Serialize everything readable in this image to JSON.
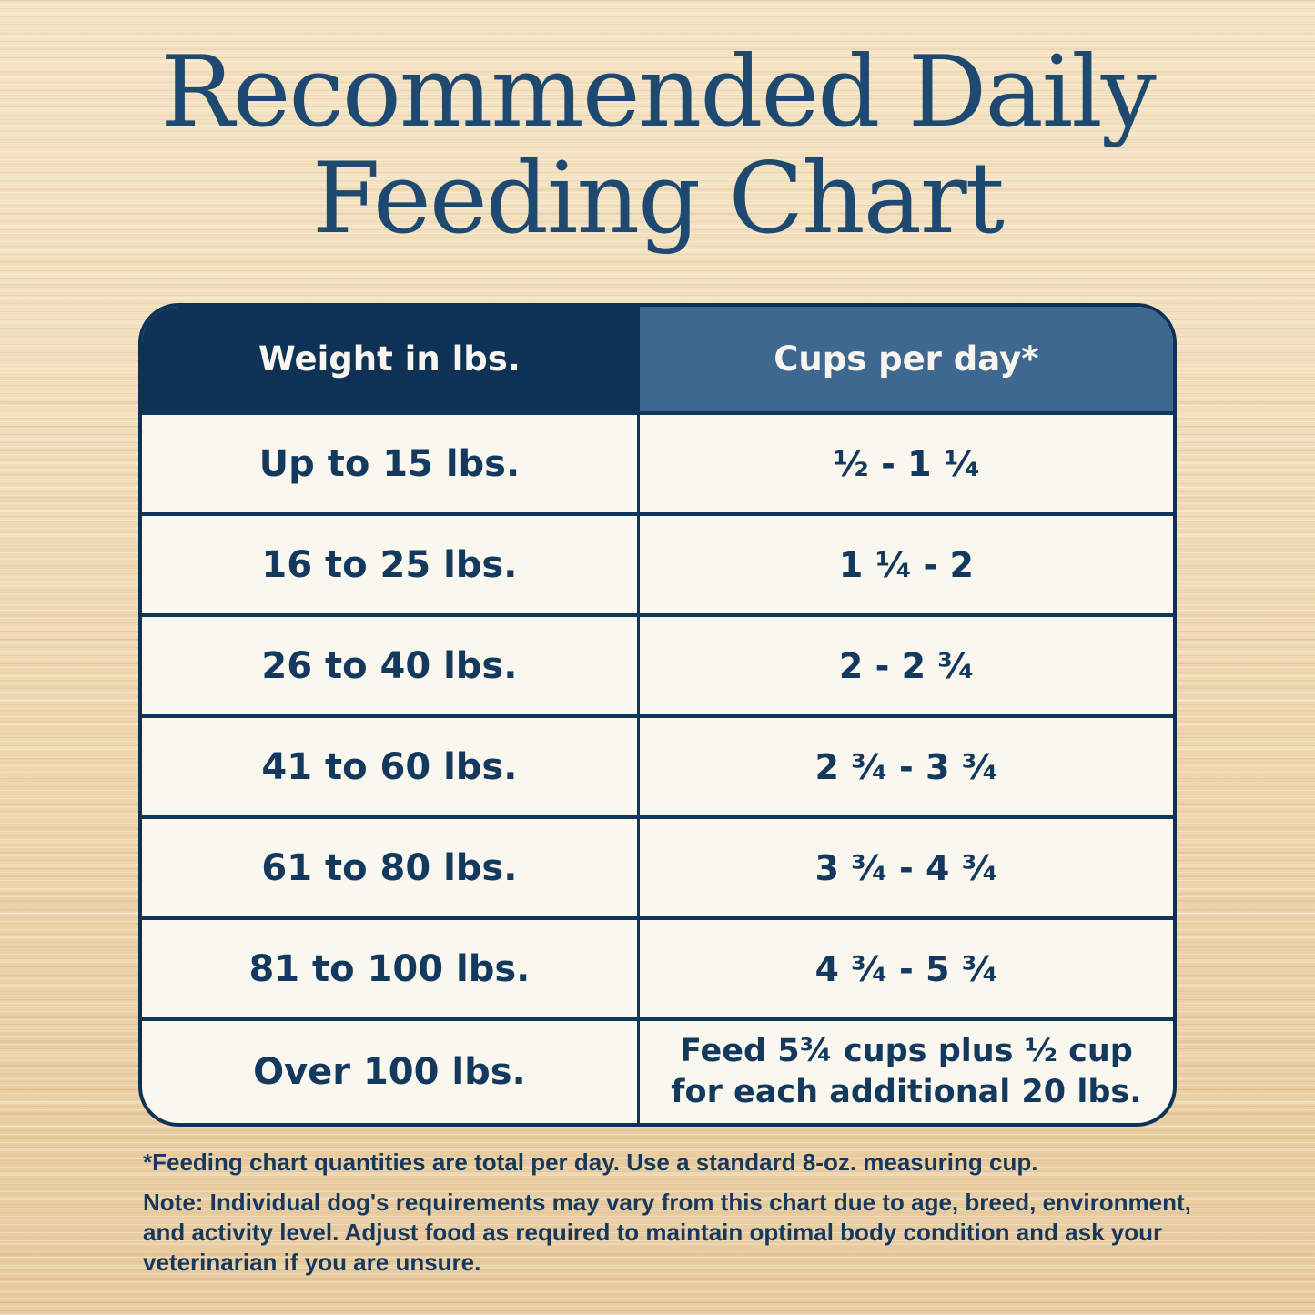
{
  "title": {
    "line1": "Recommended Daily",
    "line2": "Feeding Chart"
  },
  "table": {
    "headers": {
      "weight": "Weight in lbs.",
      "cups": "Cups per day*"
    },
    "rows": [
      {
        "weight": "Up to 15 lbs.",
        "cups": "¹⁄₂ - 1 ¹⁄₄"
      },
      {
        "weight": "16 to 25 lbs.",
        "cups": "1 ¹⁄₄ - 2"
      },
      {
        "weight": "26 to 40 lbs.",
        "cups": "2 - 2 ³⁄₄"
      },
      {
        "weight": "41 to 60 lbs.",
        "cups": "2 ³⁄₄ - 3 ³⁄₄"
      },
      {
        "weight": "61 to 80 lbs.",
        "cups": "3 ³⁄₄ - 4 ³⁄₄"
      },
      {
        "weight": "81 to 100 lbs.",
        "cups": "4 ³⁄₄ - 5 ³⁄₄"
      },
      {
        "weight": "Over 100 lbs.",
        "cups": "Feed 5¾ cups plus ½ cup\nfor each additional 20 lbs."
      }
    ]
  },
  "footnotes": {
    "asterisk": "*Feeding chart quantities are total per day. Use a standard 8-oz. measuring cup.",
    "note_label": "Note:",
    "note_text": " Individual dog's requirements may vary from this chart due to age, breed, environment, and activity level. Adjust food as required to maintain optimal body condition and ask your veterinarian if you are unsure."
  },
  "colors": {
    "header_dark_navy": "#0e3156",
    "header_slate_blue": "#3f6890",
    "row_background": "#faf7ef",
    "text_navy": "#14395e",
    "title_navy": "#1e4a72",
    "wood_light": "#f4e3c4",
    "wood_dark": "#e8cb9f"
  },
  "chart_data": {
    "type": "table",
    "title": "Recommended Daily Feeding Chart",
    "columns": [
      "Weight in lbs.",
      "Cups per day*"
    ],
    "rows": [
      [
        "Up to 15 lbs.",
        "1/2 - 1 1/4"
      ],
      [
        "16 to 25 lbs.",
        "1 1/4 - 2"
      ],
      [
        "26 to 40 lbs.",
        "2 - 2 3/4"
      ],
      [
        "41 to 60 lbs.",
        "2 3/4 - 3 3/4"
      ],
      [
        "61 to 80 lbs.",
        "3 3/4 - 4 3/4"
      ],
      [
        "81 to 100 lbs.",
        "4 3/4 - 5 3/4"
      ],
      [
        "Over 100 lbs.",
        "Feed 5 3/4 cups plus 1/2 cup for each additional 20 lbs."
      ]
    ],
    "notes": [
      "*Feeding chart quantities are total per day. Use a standard 8-oz. measuring cup.",
      "Note: Individual dog's requirements may vary from this chart due to age, breed, environment, and activity level. Adjust food as required to maintain optimal body condition and ask your veterinarian if you are unsure."
    ]
  }
}
